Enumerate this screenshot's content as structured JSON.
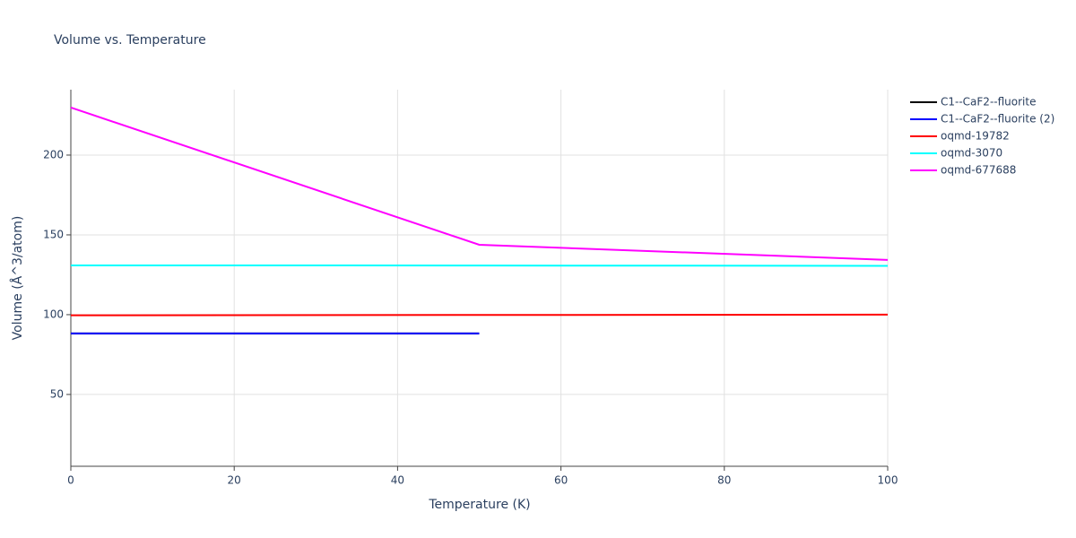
{
  "chart_data": {
    "type": "line",
    "title": "Volume vs. Temperature",
    "x_label": "Temperature (K)",
    "y_label": "Volume (Å^3/atom)",
    "xlim": [
      0,
      100
    ],
    "xticks": [
      0,
      20,
      40,
      60,
      80,
      100
    ],
    "ylim": [
      5,
      241
    ],
    "yticks": [
      50,
      100,
      150,
      200
    ],
    "grid": true,
    "legend": "right",
    "series": [
      {
        "name": "C1--CaF2--fluorite",
        "color": "#000000",
        "x": [
          0,
          50
        ],
        "values": [
          88.2,
          88.2
        ]
      },
      {
        "name": "C1--CaF2--fluorite (2)",
        "color": "#0000ff",
        "x": [
          0,
          50
        ],
        "values": [
          88.2,
          88.2
        ]
      },
      {
        "name": "oqmd-19782",
        "color": "#ff0000",
        "x": [
          0,
          50,
          100
        ],
        "values": [
          99.6,
          99.8,
          100.0
        ]
      },
      {
        "name": "oqmd-3070",
        "color": "#00ffff",
        "x": [
          0,
          50,
          100
        ],
        "values": [
          130.9,
          130.8,
          130.6
        ]
      },
      {
        "name": "oqmd-677688",
        "color": "#ff00ff",
        "x": [
          0,
          50,
          100
        ],
        "values": [
          229.8,
          143.8,
          134.3
        ]
      }
    ]
  }
}
